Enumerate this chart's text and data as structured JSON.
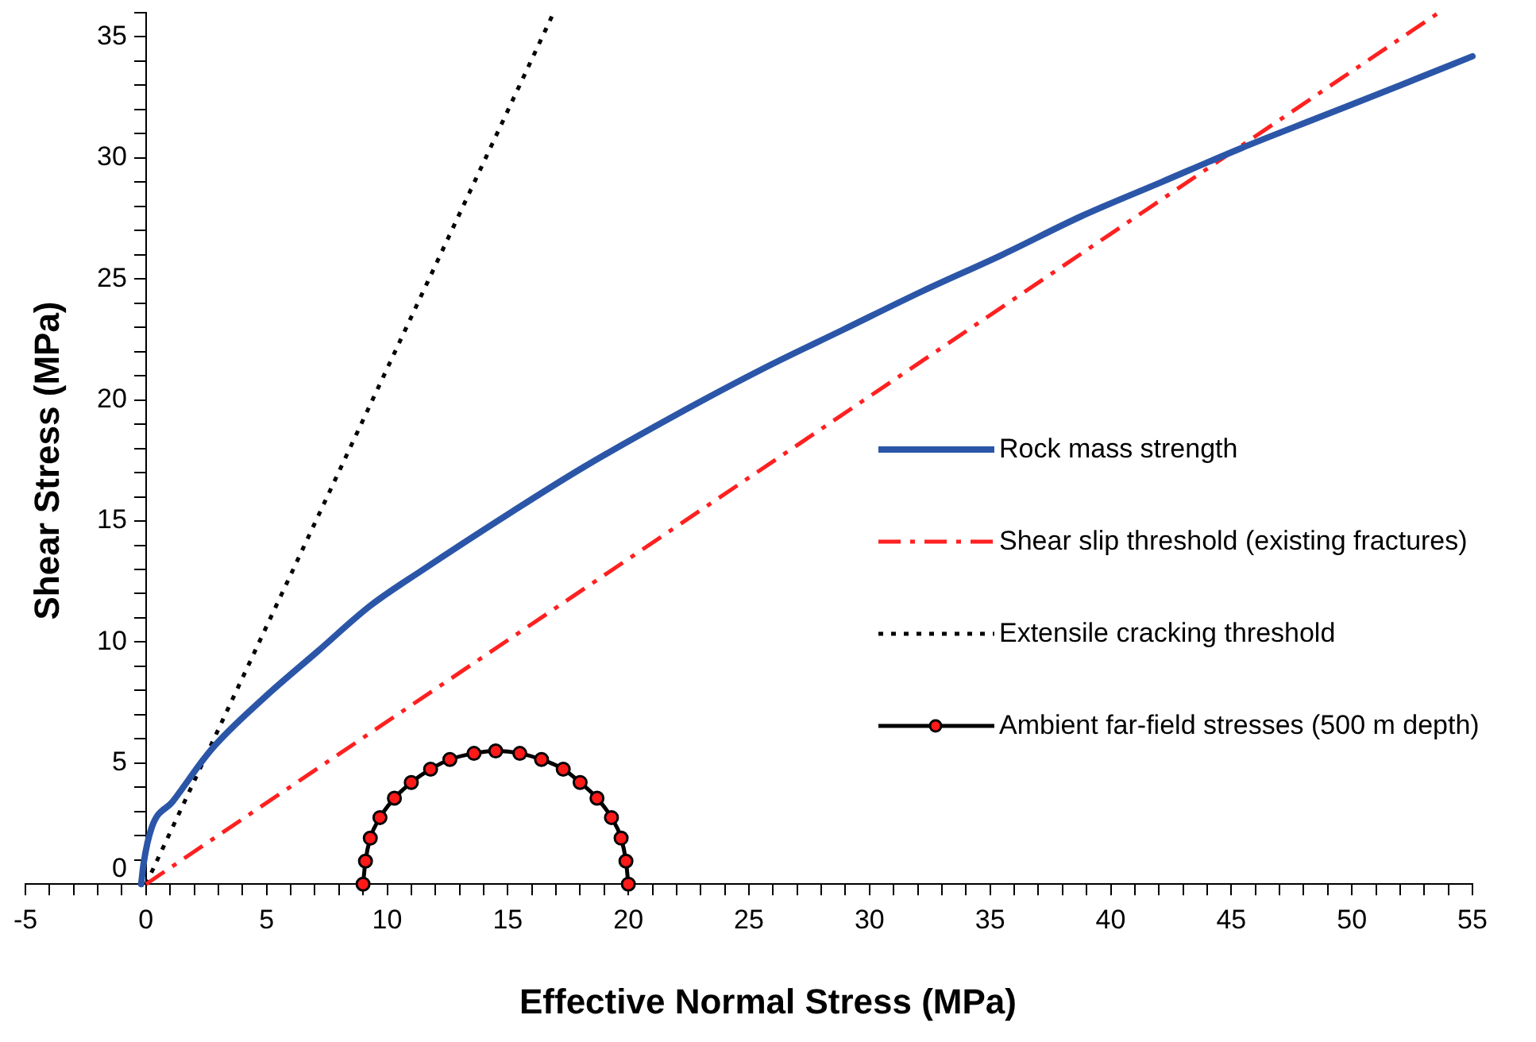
{
  "chart_data": {
    "type": "line",
    "xlabel": "Effective Normal Stress (MPa)",
    "ylabel": "Shear Stress (MPa)",
    "xlim": [
      -5,
      55
    ],
    "ylim": [
      0,
      36
    ],
    "xticks": [
      -5,
      {
        "value": -4,
        "label": null
      },
      {
        "value": -3,
        "label": null
      },
      {
        "value": -2,
        "label": null
      },
      {
        "value": -1,
        "label": null
      },
      0,
      {
        "value": 1,
        "label": null
      },
      {
        "value": 2,
        "label": null
      },
      {
        "value": 3,
        "label": null
      },
      {
        "value": 4,
        "label": null
      },
      5,
      {
        "value": 6,
        "label": null
      },
      {
        "value": 7,
        "label": null
      },
      {
        "value": 8,
        "label": null
      },
      {
        "value": 9,
        "label": null
      },
      10,
      {
        "value": 11,
        "label": null
      },
      {
        "value": 12,
        "label": null
      },
      {
        "value": 13,
        "label": null
      },
      {
        "value": 14,
        "label": null
      },
      15,
      {
        "value": 16,
        "label": null
      },
      {
        "value": 17,
        "label": null
      },
      {
        "value": 18,
        "label": null
      },
      {
        "value": 19,
        "label": null
      },
      20,
      {
        "value": 21,
        "label": null
      },
      {
        "value": 22,
        "label": null
      },
      {
        "value": 23,
        "label": null
      },
      {
        "value": 24,
        "label": null
      },
      25,
      {
        "value": 26,
        "label": null
      },
      {
        "value": 27,
        "label": null
      },
      {
        "value": 28,
        "label": null
      },
      {
        "value": 29,
        "label": null
      },
      30,
      {
        "value": 31,
        "label": null
      },
      {
        "value": 32,
        "label": null
      },
      {
        "value": 33,
        "label": null
      },
      {
        "value": 34,
        "label": null
      },
      35,
      {
        "value": 36,
        "label": null
      },
      {
        "value": 37,
        "label": null
      },
      {
        "value": 38,
        "label": null
      },
      {
        "value": 39,
        "label": null
      },
      40,
      {
        "value": 41,
        "label": null
      },
      {
        "value": 42,
        "label": null
      },
      {
        "value": 43,
        "label": null
      },
      {
        "value": 44,
        "label": null
      },
      45,
      {
        "value": 46,
        "label": null
      },
      {
        "value": 47,
        "label": null
      },
      {
        "value": 48,
        "label": null
      },
      {
        "value": 49,
        "label": null
      },
      50,
      {
        "value": 51,
        "label": null
      },
      {
        "value": 52,
        "label": null
      },
      {
        "value": 53,
        "label": null
      },
      {
        "value": 54,
        "label": null
      },
      55
    ],
    "yticks": [
      0,
      {
        "value": 1,
        "label": null
      },
      {
        "value": 2,
        "label": null
      },
      {
        "value": 3,
        "label": null
      },
      {
        "value": 4,
        "label": null
      },
      5,
      {
        "value": 6,
        "label": null
      },
      {
        "value": 7,
        "label": null
      },
      {
        "value": 8,
        "label": null
      },
      {
        "value": 9,
        "label": null
      },
      10,
      {
        "value": 11,
        "label": null
      },
      {
        "value": 12,
        "label": null
      },
      {
        "value": 13,
        "label": null
      },
      {
        "value": 14,
        "label": null
      },
      15,
      {
        "value": 16,
        "label": null
      },
      {
        "value": 17,
        "label": null
      },
      {
        "value": 18,
        "label": null
      },
      {
        "value": 19,
        "label": null
      },
      20,
      {
        "value": 21,
        "label": null
      },
      {
        "value": 22,
        "label": null
      },
      {
        "value": 23,
        "label": null
      },
      {
        "value": 24,
        "label": null
      },
      25,
      {
        "value": 26,
        "label": null
      },
      {
        "value": 27,
        "label": null
      },
      {
        "value": 28,
        "label": null
      },
      {
        "value": 29,
        "label": null
      },
      30,
      {
        "value": 31,
        "label": null
      },
      {
        "value": 32,
        "label": null
      },
      {
        "value": 33,
        "label": null
      },
      {
        "value": 34,
        "label": null
      },
      35,
      {
        "value": 36,
        "label": null
      }
    ],
    "legend": "right",
    "grid": false,
    "series": [
      {
        "name": "Rock mass strength",
        "color": "#2b56a8",
        "marker": "none",
        "line_style": "solid",
        "x": [
          -0.2,
          -0.1,
          0.24,
          1.1,
          2.7,
          4.9,
          7.1,
          9.3,
          11.5,
          15.2,
          18.1,
          22.0,
          25.6,
          28.9,
          32.2,
          35.5,
          38.8,
          42.1,
          45.4,
          48.7,
          52.0,
          55.0
        ],
        "values": [
          0,
          0.85,
          2.35,
          3.4,
          5.55,
          7.7,
          9.6,
          11.5,
          13.0,
          15.4,
          17.2,
          19.4,
          21.3,
          22.9,
          24.5,
          26.0,
          27.6,
          29.0,
          30.4,
          31.7,
          33.0,
          34.2
        ]
      },
      {
        "name": "Shear slip threshold (existing fractures)",
        "color": "#ff2020",
        "marker": "none",
        "line_style": "dashed",
        "x": [
          0,
          53.6
        ],
        "values": [
          0,
          36
        ]
      },
      {
        "name": "Extensile cracking threshold",
        "color": "#000000",
        "marker": "none",
        "line_style": "dotted",
        "x": [
          0,
          16.9
        ],
        "values": [
          0,
          36
        ]
      },
      {
        "name": "Ambient far-field stresses (500 m depth)",
        "color": "#000000",
        "marker": "circle",
        "line_style": "solid",
        "x": [
          9.0,
          9.1,
          9.3,
          9.7,
          10.3,
          11.0,
          11.8,
          12.6,
          13.6,
          14.5,
          15.5,
          16.4,
          17.3,
          18.0,
          18.7,
          19.3,
          19.7,
          19.9,
          20.0
        ],
        "values": [
          0,
          0.95,
          1.9,
          2.75,
          3.55,
          4.2,
          4.75,
          5.15,
          5.4,
          5.5,
          5.4,
          5.15,
          4.75,
          4.2,
          3.55,
          2.75,
          1.9,
          0.95,
          0
        ]
      }
    ]
  }
}
